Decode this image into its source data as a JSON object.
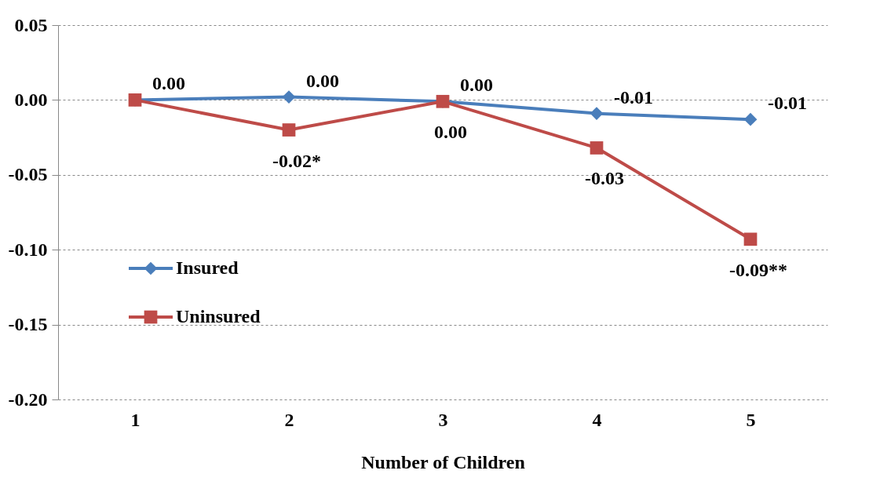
{
  "chart_data": {
    "type": "line",
    "xlabel": "Number of Children",
    "categories": [
      "1",
      "2",
      "3",
      "4",
      "5"
    ],
    "series": [
      {
        "name": "Insured",
        "color": "#4a7ebb",
        "marker": "diamond",
        "values": [
          0.0,
          0.002,
          -0.001,
          -0.009,
          -0.013
        ],
        "value_labels": [
          "0.00",
          "0.00",
          "0.00",
          "-0.01",
          "-0.01"
        ]
      },
      {
        "name": "Uninsured",
        "color": "#be4b48",
        "marker": "square",
        "values": [
          0.0,
          -0.02,
          -0.001,
          -0.032,
          -0.093
        ],
        "value_labels": [
          null,
          "-0.02*",
          "0.00",
          "-0.03",
          "-0.09**"
        ]
      }
    ],
    "ylim": [
      -0.2,
      0.05
    ],
    "yticks": [
      {
        "value": -0.2,
        "label": "-0.20"
      },
      {
        "value": -0.15,
        "label": "-0.15"
      },
      {
        "value": -0.1,
        "label": "-0.10"
      },
      {
        "value": -0.05,
        "label": "-0.05"
      },
      {
        "value": 0,
        "label": "0.00"
      },
      {
        "value": 0.05,
        "label": "0.05"
      }
    ],
    "grid": "y",
    "legend": "left"
  }
}
